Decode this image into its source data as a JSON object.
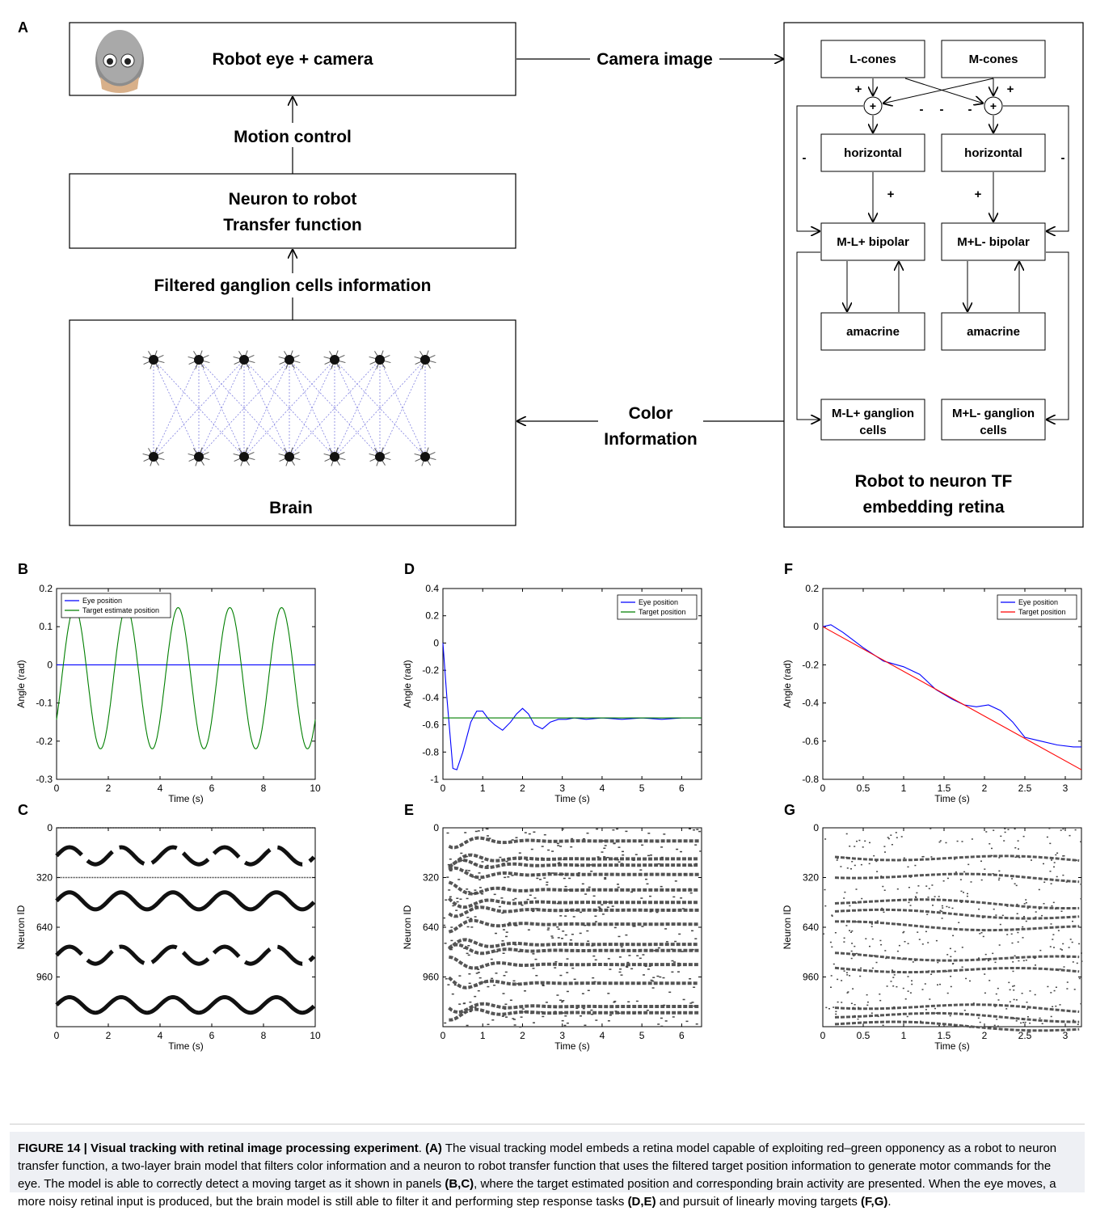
{
  "panel_labels": {
    "A": "A",
    "B": "B",
    "C": "C",
    "D": "D",
    "E": "E",
    "F": "F",
    "G": "G"
  },
  "diagram": {
    "robot_box": "Robot eye + camera",
    "motion_control": "Motion control",
    "transfer_line1": "Neuron to robot",
    "transfer_line2": "Transfer function",
    "filtered_info": "Filtered ganglion cells information",
    "brain": "Brain",
    "camera_image": "Camera image",
    "color_line1": "Color",
    "color_line2": "Information",
    "retina_title1": "Robot to neuron TF",
    "retina_title2": "embedding retina",
    "l_cones": "L-cones",
    "m_cones": "M-cones",
    "horizontal_left": "horizontal",
    "horizontal_right": "horizontal",
    "bipolar_left": "M-L+ bipolar",
    "bipolar_right": "M+L- bipolar",
    "amacrine_left": "amacrine",
    "amacrine_right": "amacrine",
    "ganglion_left_1": "M-L+ ganglion",
    "ganglion_left_2": "cells",
    "ganglion_right_1": "M+L- ganglion",
    "ganglion_right_2": "cells",
    "plus": "+",
    "minus": "-"
  },
  "caption": {
    "lead": "FIGURE 14 | Visual tracking with retinal image processing experiment",
    "text1": ". ",
    "a": "(A)",
    "text2": " The visual tracking model embeds a retina model capable of exploiting red–green opponency as a robot to neuron transfer function, a two-layer brain model that filters color information and a neuron to robot transfer function that uses the filtered target position information to generate motor commands for the eye. The model is able to correctly detect a moving target as it shown in panels ",
    "bc": "(B,C)",
    "text3": ", where the target estimated position and corresponding brain activity are presented. When the eye moves, a more noisy retinal input is produced, but the brain model is still able to filter it and performing step response tasks ",
    "de": "(D,E)",
    "text4": " and pursuit of linearly moving targets ",
    "fg": "(F,G)",
    "text5": "."
  },
  "chart_data": [
    {
      "panel": "B",
      "type": "line",
      "xlabel": "Time (s)",
      "ylabel": "Angle (rad)",
      "xlim": [
        0,
        10
      ],
      "ylim": [
        -0.3,
        0.2
      ],
      "xticks": [
        "0",
        "2",
        "4",
        "6",
        "8",
        "10"
      ],
      "yticks": [
        "-0.3",
        "-0.2",
        "-0.1",
        "0",
        "0.1",
        "0.2"
      ],
      "legend_position": "top-left",
      "series": [
        {
          "name": "Eye position",
          "color": "#0000ff",
          "kind": "constant",
          "value": 0
        },
        {
          "name": "Target estimate position",
          "color": "#007f00",
          "kind": "sine",
          "offset": -0.035,
          "amplitude": 0.185,
          "period": 2.0,
          "phase_time": 0.7,
          "x": [
            0,
            10
          ]
        }
      ]
    },
    {
      "panel": "D",
      "type": "line",
      "xlabel": "Time (s)",
      "ylabel": "Angle (rad)",
      "xlim": [
        0,
        6.5
      ],
      "ylim": [
        -1,
        0.4
      ],
      "xticks": [
        "0",
        "1",
        "2",
        "3",
        "4",
        "5",
        "6"
      ],
      "yticks": [
        "-1",
        "-0.8",
        "-0.6",
        "-0.4",
        "-0.2",
        "0",
        "0.2",
        "0.4"
      ],
      "legend_position": "top-right",
      "series": [
        {
          "name": "Eye position",
          "color": "#0000ff",
          "points": [
            [
              0,
              0
            ],
            [
              0.1,
              -0.4
            ],
            [
              0.25,
              -0.92
            ],
            [
              0.35,
              -0.93
            ],
            [
              0.5,
              -0.8
            ],
            [
              0.7,
              -0.58
            ],
            [
              0.85,
              -0.5
            ],
            [
              1.0,
              -0.5
            ],
            [
              1.15,
              -0.56
            ],
            [
              1.3,
              -0.6
            ],
            [
              1.5,
              -0.64
            ],
            [
              1.7,
              -0.58
            ],
            [
              1.85,
              -0.52
            ],
            [
              2.0,
              -0.48
            ],
            [
              2.15,
              -0.52
            ],
            [
              2.3,
              -0.6
            ],
            [
              2.5,
              -0.63
            ],
            [
              2.7,
              -0.58
            ],
            [
              2.9,
              -0.56
            ],
            [
              3.1,
              -0.56
            ],
            [
              3.3,
              -0.55
            ],
            [
              3.6,
              -0.56
            ],
            [
              4.0,
              -0.55
            ],
            [
              4.5,
              -0.56
            ],
            [
              5.0,
              -0.55
            ],
            [
              5.5,
              -0.56
            ],
            [
              6.0,
              -0.55
            ],
            [
              6.5,
              -0.55
            ]
          ]
        },
        {
          "name": "Target position",
          "color": "#007f00",
          "kind": "constant",
          "value": -0.55
        }
      ]
    },
    {
      "panel": "F",
      "type": "line",
      "xlabel": "Time (s)",
      "ylabel": "Angle (rad)",
      "xlim": [
        0,
        3.2
      ],
      "ylim": [
        -0.8,
        0.2
      ],
      "xticks": [
        "0",
        "0.5",
        "1",
        "1.5",
        "2",
        "2.5",
        "3"
      ],
      "yticks": [
        "-0.8",
        "-0.6",
        "-0.4",
        "-0.2",
        "0",
        "0.2"
      ],
      "legend_position": "top-right",
      "series": [
        {
          "name": "Eye position",
          "color": "#0000ff",
          "points": [
            [
              0,
              0
            ],
            [
              0.1,
              0.01
            ],
            [
              0.25,
              -0.03
            ],
            [
              0.5,
              -0.11
            ],
            [
              0.75,
              -0.18
            ],
            [
              1.0,
              -0.21
            ],
            [
              1.2,
              -0.25
            ],
            [
              1.4,
              -0.33
            ],
            [
              1.6,
              -0.38
            ],
            [
              1.75,
              -0.41
            ],
            [
              1.9,
              -0.42
            ],
            [
              2.05,
              -0.41
            ],
            [
              2.2,
              -0.44
            ],
            [
              2.35,
              -0.5
            ],
            [
              2.5,
              -0.58
            ],
            [
              2.7,
              -0.6
            ],
            [
              2.9,
              -0.62
            ],
            [
              3.1,
              -0.63
            ],
            [
              3.2,
              -0.63
            ]
          ]
        },
        {
          "name": "Target position",
          "color": "#ff0000",
          "points": [
            [
              0,
              0
            ],
            [
              3.2,
              -0.75
            ]
          ]
        }
      ]
    },
    {
      "panel": "C",
      "type": "scatter",
      "xlabel": "Time (s)",
      "ylabel": "Neuron ID",
      "xlim": [
        0,
        10
      ],
      "ylim": [
        0,
        1280
      ],
      "xticks": [
        "0",
        "2",
        "4",
        "6",
        "8",
        "10"
      ],
      "yticks": [
        "0",
        "320",
        "640",
        "960"
      ],
      "rows": [
        {
          "kind": "flat",
          "center": 0
        },
        {
          "kind": "sine",
          "center": 180,
          "amplitude": 55,
          "period": 2.0,
          "dashed": true
        },
        {
          "kind": "flat",
          "center": 320
        },
        {
          "kind": "sine",
          "center": 470,
          "amplitude": 55,
          "period": 2.0,
          "dashed": false
        },
        {
          "kind": "sine",
          "center": 820,
          "amplitude": 55,
          "period": 2.0,
          "dashed": true
        },
        {
          "kind": "sine",
          "center": 1140,
          "amplitude": 50,
          "period": 2.0,
          "dashed": false
        }
      ]
    },
    {
      "panel": "E",
      "type": "scatter",
      "xlabel": "Time (s)",
      "ylabel": "Neuron ID",
      "xlim": [
        0,
        6.5
      ],
      "ylim": [
        0,
        1280
      ],
      "xticks": [
        "0",
        "1",
        "2",
        "3",
        "4",
        "5",
        "6"
      ],
      "yticks": [
        "0",
        "320",
        "640",
        "960"
      ],
      "bands": [
        85,
        200,
        240,
        300,
        400,
        480,
        530,
        620,
        750,
        790,
        880,
        1000,
        1150,
        1190
      ]
    },
    {
      "panel": "G",
      "type": "scatter",
      "xlabel": "Time (s)",
      "ylabel": "Neuron ID",
      "xlim": [
        0,
        3.2
      ],
      "ylim": [
        0,
        1280
      ],
      "xticks": [
        "0",
        "0.5",
        "1",
        "1.5",
        "2",
        "2.5",
        "3"
      ],
      "yticks": [
        "0",
        "320",
        "640",
        "960"
      ],
      "bands": [
        180,
        300,
        470,
        540,
        620,
        820,
        900,
        1140,
        1200,
        1260
      ]
    }
  ]
}
